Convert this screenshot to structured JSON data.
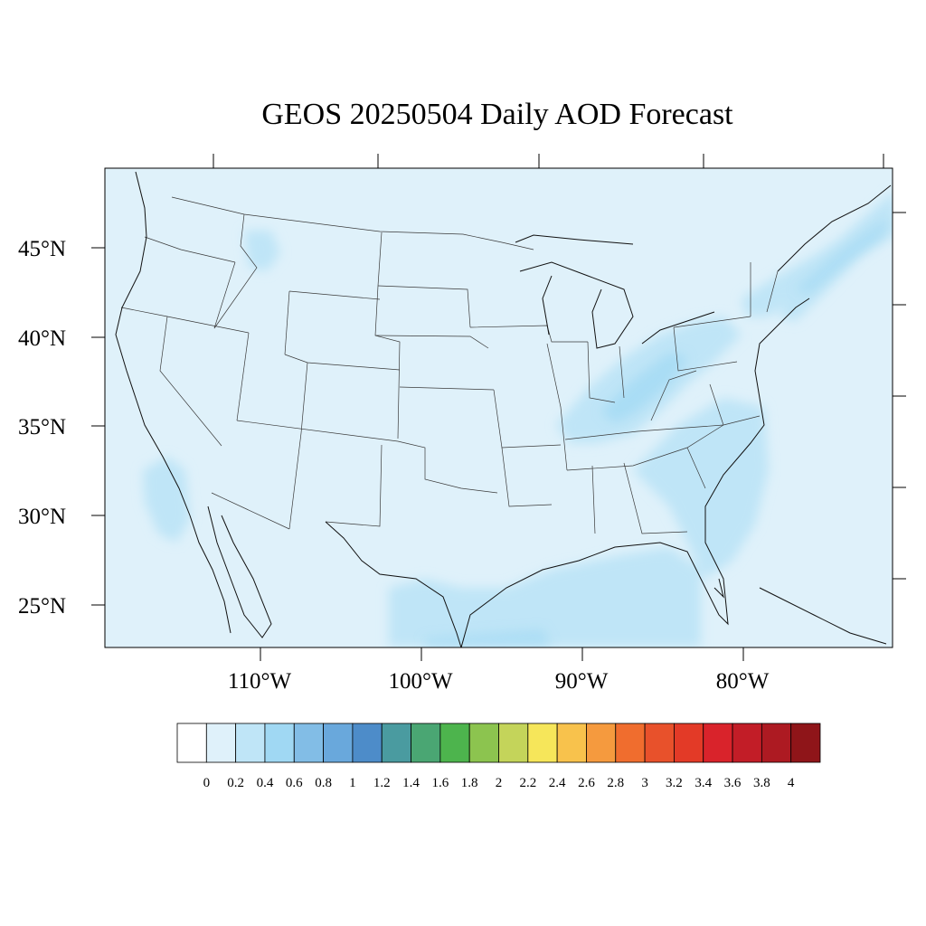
{
  "title": "GEOS 20250504 Daily AOD Forecast",
  "map": {
    "background_color": "#dff1fa",
    "lat_labels": [
      "45°N",
      "40°N",
      "35°N",
      "30°N",
      "25°N"
    ],
    "lon_labels": [
      "110°W",
      "100°W",
      "90°W",
      "80°W"
    ]
  },
  "colorbar": {
    "colors": [
      "#ffffff",
      "#dff1fa",
      "#bfe5f7",
      "#a0d8f3",
      "#82bde6",
      "#69a8dc",
      "#4d8cc9",
      "#4a9ba0",
      "#4aa673",
      "#4db44d",
      "#8cc44f",
      "#c4d45a",
      "#f6e65a",
      "#f8c24c",
      "#f59a3e",
      "#f06d2e",
      "#e8512b",
      "#e33a27",
      "#d9232b",
      "#c21d27",
      "#ad1a22",
      "#8f1519"
    ],
    "labels": [
      "0",
      "0.2",
      "0.4",
      "0.6",
      "0.8",
      "1",
      "1.2",
      "1.4",
      "1.6",
      "1.8",
      "2",
      "2.2",
      "2.4",
      "2.6",
      "2.8",
      "3",
      "3.2",
      "3.4",
      "3.6",
      "3.8",
      "4"
    ]
  }
}
